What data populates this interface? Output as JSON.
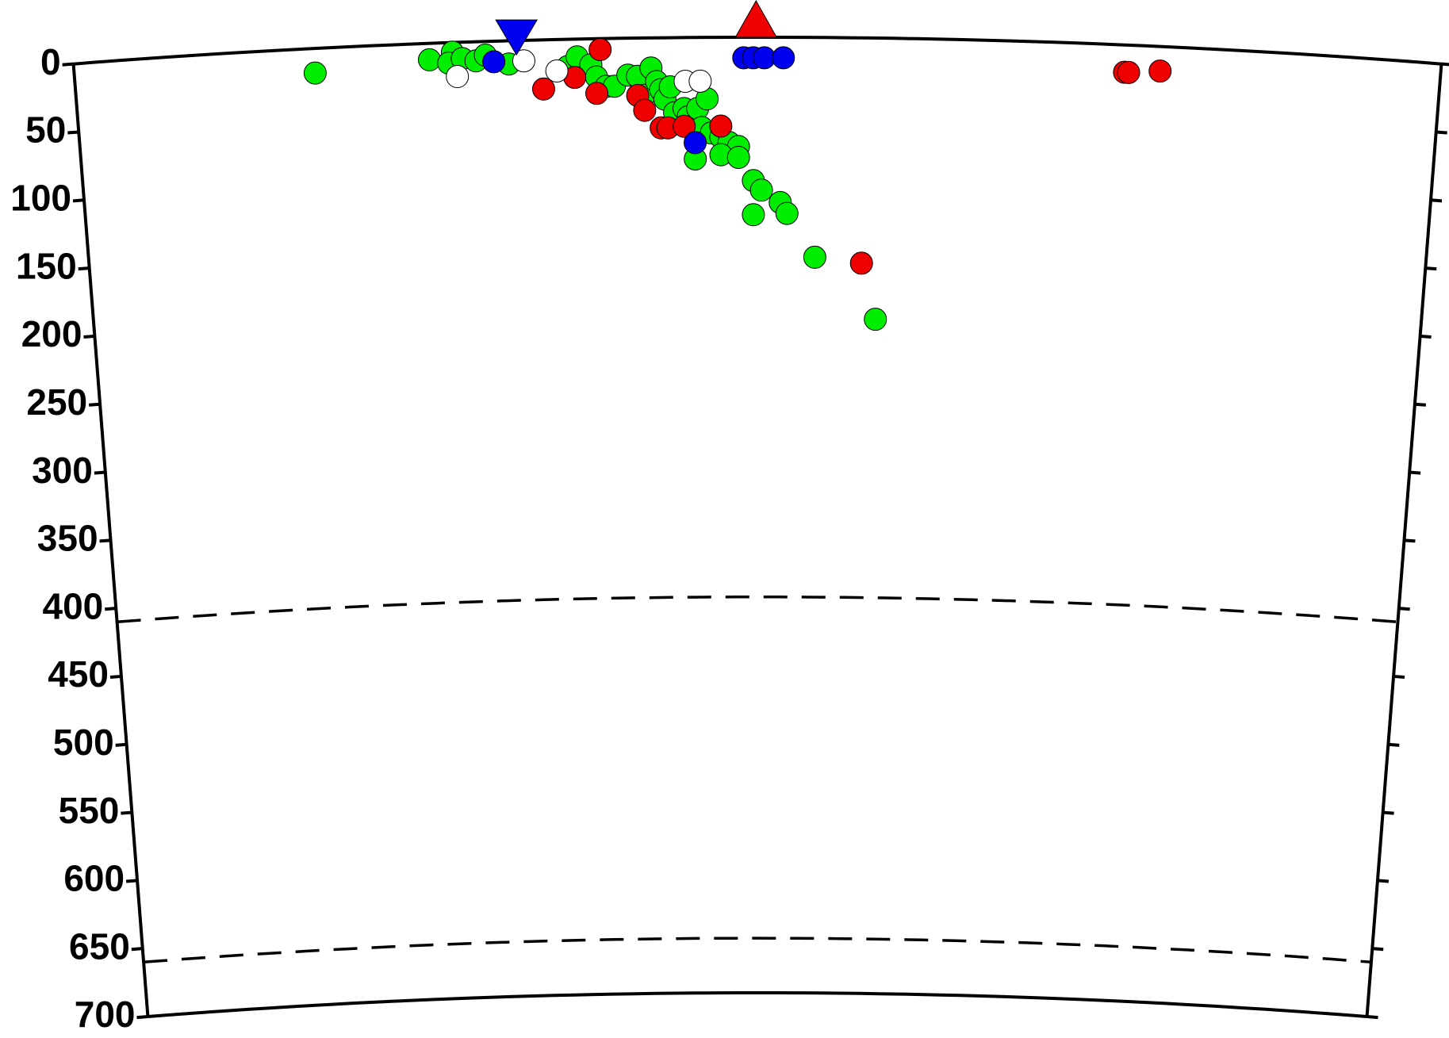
{
  "chart_data": {
    "type": "scatter",
    "xlim": [
      0,
      100
    ],
    "ylim": [
      0,
      700
    ],
    "yticks": [
      0,
      50,
      100,
      150,
      200,
      250,
      300,
      350,
      400,
      450,
      500,
      550,
      600,
      650,
      700
    ],
    "reference_depths": [
      410,
      660
    ],
    "series": [
      {
        "color": "#00ee00",
        "marker": "circle",
        "x": [
          17.6,
          26.0,
          27.7,
          27.4,
          28.4,
          29.4,
          30.1,
          31.8,
          36.1,
          36.8,
          37.8,
          38.2,
          38.9,
          39.5,
          40.5,
          41.2,
          41.7,
          42.2,
          42.6,
          42.9,
          43.2,
          43.6,
          43.9,
          44.6,
          44.9,
          45.6,
          45.9,
          46.3,
          46.6,
          47.3,
          47.9,
          48.6,
          45.4,
          47.3,
          48.6,
          49.7,
          50.3,
          51.7,
          52.2,
          49.7,
          54.3,
          58.9
        ],
        "values": [
          18,
          12,
          7,
          15,
          12,
          14,
          10,
          17,
          20,
          13,
          19,
          28,
          35,
          35,
          27,
          28,
          42,
          22,
          32,
          38,
          45,
          36,
          55,
          52,
          58,
          52,
          66,
          45,
          70,
          73,
          77,
          80,
          89,
          86,
          88,
          105,
          112,
          121,
          129,
          130,
          161,
          206
        ]
      },
      {
        "color": "#ee0000",
        "marker": "circle",
        "x": [
          34.3,
          38.5,
          36.6,
          38.2,
          41.2,
          41.7,
          42.9,
          43.4,
          44.6,
          47.3,
          57.8,
          76.9,
          77.2,
          79.5
        ],
        "values": [
          36,
          8,
          28,
          40,
          42,
          53,
          66,
          66,
          65,
          65,
          165,
          20,
          20,
          18
        ]
      },
      {
        "color": "#0000ee",
        "marker": "circle",
        "x": [
          30.7,
          45.4,
          49.0,
          49.7,
          50.5,
          51.9
        ],
        "values": [
          15,
          77,
          15,
          15,
          15,
          15
        ]
      },
      {
        "color": "#ffffff",
        "marker": "circle",
        "x": [
          28.0,
          32.9,
          35.3,
          44.7,
          45.8
        ],
        "values": [
          25,
          15,
          23,
          32,
          32
        ]
      },
      {
        "color": "#0000ee",
        "marker": "triangle-down",
        "x": [
          32.4
        ],
        "values": [
          0
        ]
      },
      {
        "color": "#ee0000",
        "marker": "triangle-up",
        "x": [
          49.9
        ],
        "values": [
          0
        ]
      }
    ]
  }
}
